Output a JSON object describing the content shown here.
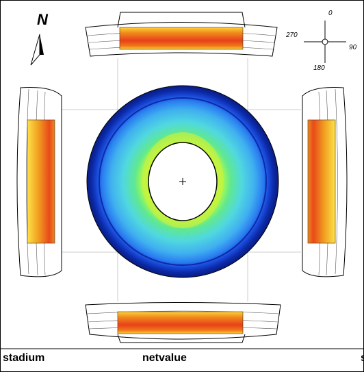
{
  "north_label": "N",
  "compass": {
    "north": "0",
    "east": "90",
    "south": "180",
    "west": "270"
  },
  "footer": {
    "left": "stadium",
    "center": "netvalue",
    "right": "s"
  }
}
